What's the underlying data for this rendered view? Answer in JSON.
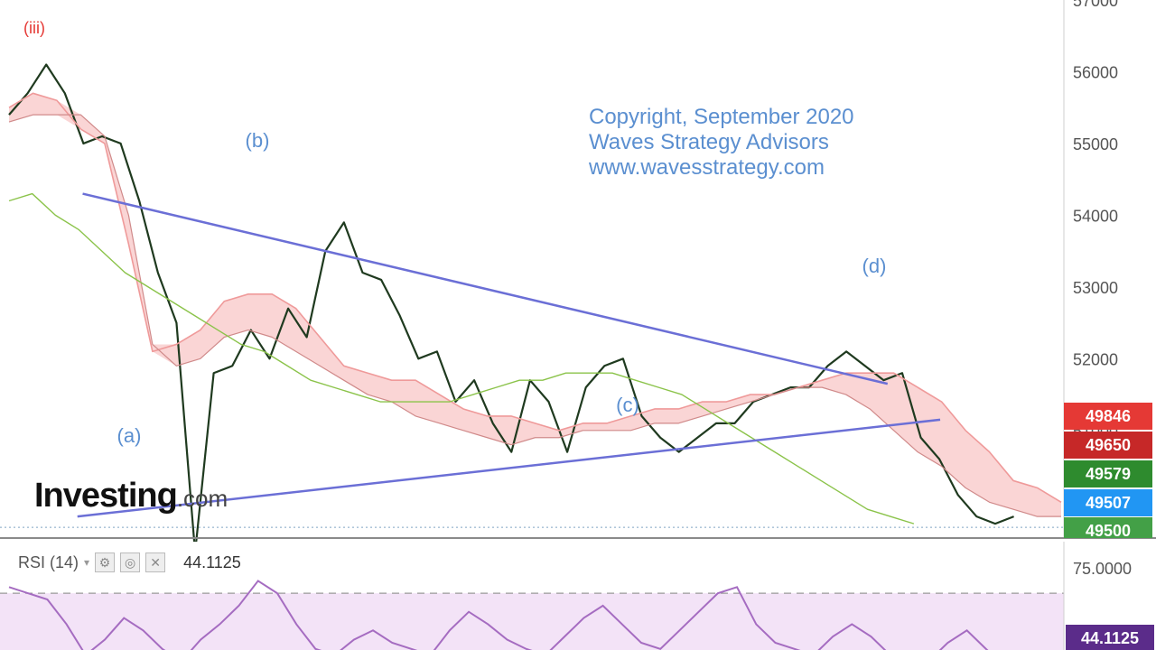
{
  "chart_data": {
    "type": "line",
    "title": "",
    "xlabel": "",
    "ylabel": "",
    "ylim": [
      49500,
      57000
    ],
    "y_ticks": [
      57000,
      56000,
      55000,
      54000,
      53000,
      52000,
      51000
    ],
    "grid": false,
    "series": [
      {
        "values": [
          55400,
          55700,
          56100,
          55700,
          55000,
          55100,
          55000,
          54200,
          53200,
          52500,
          49300,
          51800,
          51900,
          52400,
          52000,
          52700,
          52300,
          53500,
          53900,
          53200,
          53100,
          52600,
          52000,
          52100,
          51400,
          51700,
          51100,
          50700,
          51700,
          51400,
          50700,
          51600,
          51900,
          52000,
          51200,
          50900,
          50700,
          50900,
          51100,
          51100,
          51400,
          51500,
          51600,
          51600,
          51900,
          52100,
          51900,
          51700,
          51800,
          50900,
          50600,
          50100,
          49800,
          49700,
          49800
        ]
      },
      {
        "values": [
          55500,
          55700,
          55600,
          55200,
          55000,
          53600,
          52100,
          52200,
          52400,
          52800,
          52900,
          52900,
          52700,
          52300,
          51900,
          51800,
          51700,
          51700,
          51500,
          51300,
          51200,
          51200,
          51100,
          51000,
          51100,
          51100,
          51200,
          51300,
          51300,
          51400,
          51400,
          51500,
          51500,
          51600,
          51700,
          51800,
          51800,
          51800,
          51600,
          51400,
          51000,
          50700,
          50300,
          50200,
          50000
        ]
      },
      {
        "values": [
          55300,
          55400,
          55400,
          55400,
          55100,
          54000,
          52200,
          51900,
          52000,
          52300,
          52400,
          52300,
          52100,
          51900,
          51700,
          51500,
          51400,
          51200,
          51100,
          51000,
          50900,
          50800,
          50900,
          50900,
          51000,
          51000,
          51000,
          51100,
          51100,
          51200,
          51300,
          51400,
          51500,
          51600,
          51600,
          51500,
          51300,
          51000,
          50700,
          50500,
          50200,
          50000,
          49900,
          49800,
          49800
        ]
      },
      {
        "values": [
          54200,
          54300,
          54000,
          53800,
          53500,
          53200,
          53000,
          52800,
          52600,
          52400,
          52200,
          52100,
          51900,
          51700,
          51600,
          51500,
          51400,
          51400,
          51400,
          51400,
          51500,
          51600,
          51700,
          51700,
          51800,
          51800,
          51800,
          51700,
          51600,
          51500,
          51300,
          51100,
          50900,
          50700,
          50500,
          50300,
          50100,
          49900,
          49800,
          49700
        ]
      }
    ],
    "price_tags": [
      {
        "value": "49846",
        "color": "#e53935"
      },
      {
        "value": "49650",
        "color": "#c62828"
      },
      {
        "value": "49579",
        "color": "#2e8b2e"
      },
      {
        "value": "49507",
        "color": "#2196f3"
      },
      {
        "value": "49500",
        "color": "#43a047"
      }
    ],
    "reference_line": 49650,
    "trendlines": [
      {
        "from": [
          0.07,
          54300
        ],
        "to": [
          0.835,
          51650
        ]
      },
      {
        "from": [
          0.065,
          49800
        ],
        "to": [
          0.885,
          51150
        ]
      }
    ],
    "wave_labels": [
      {
        "text": "(iii)",
        "color": "#e53935"
      },
      {
        "text": "(a)",
        "color": "#5b8fd0"
      },
      {
        "text": "(b)",
        "color": "#5b8fd0"
      },
      {
        "text": "(c)",
        "color": "#5b8fd0"
      },
      {
        "text": "(d)",
        "color": "#5b8fd0"
      }
    ],
    "rsi": {
      "label": "RSI (14)",
      "value": "44.1125",
      "level_label": "75.0000",
      "upper": 70,
      "values": [
        72,
        70,
        68,
        60,
        50,
        55,
        62,
        58,
        52,
        48,
        55,
        60,
        66,
        74,
        70,
        60,
        52,
        50,
        55,
        58,
        54,
        52,
        50,
        58,
        64,
        60,
        55,
        52,
        50,
        56,
        62,
        66,
        60,
        54,
        52,
        58,
        64,
        70,
        72,
        60,
        54,
        52,
        50,
        56,
        60,
        56,
        50,
        46,
        48,
        54,
        58,
        52,
        46,
        44
      ]
    }
  },
  "copyright": {
    "line1": "Copyright, September 2020",
    "line2": "Waves Strategy Advisors",
    "line3": "www.wavesstrategy.com"
  },
  "logo": {
    "main": "Investing",
    "suffix": ".com"
  },
  "colors": {
    "price": "#1f3a1f",
    "tenkan": "#ef9a9a",
    "kijun": "#b0c4a0",
    "chikou": "#8bc34a",
    "cloud": "#f8c7c7",
    "trendline": "#6b6fd6",
    "rsi_line": "#a56cc1",
    "rsi_fill": "#f3e3f7"
  }
}
